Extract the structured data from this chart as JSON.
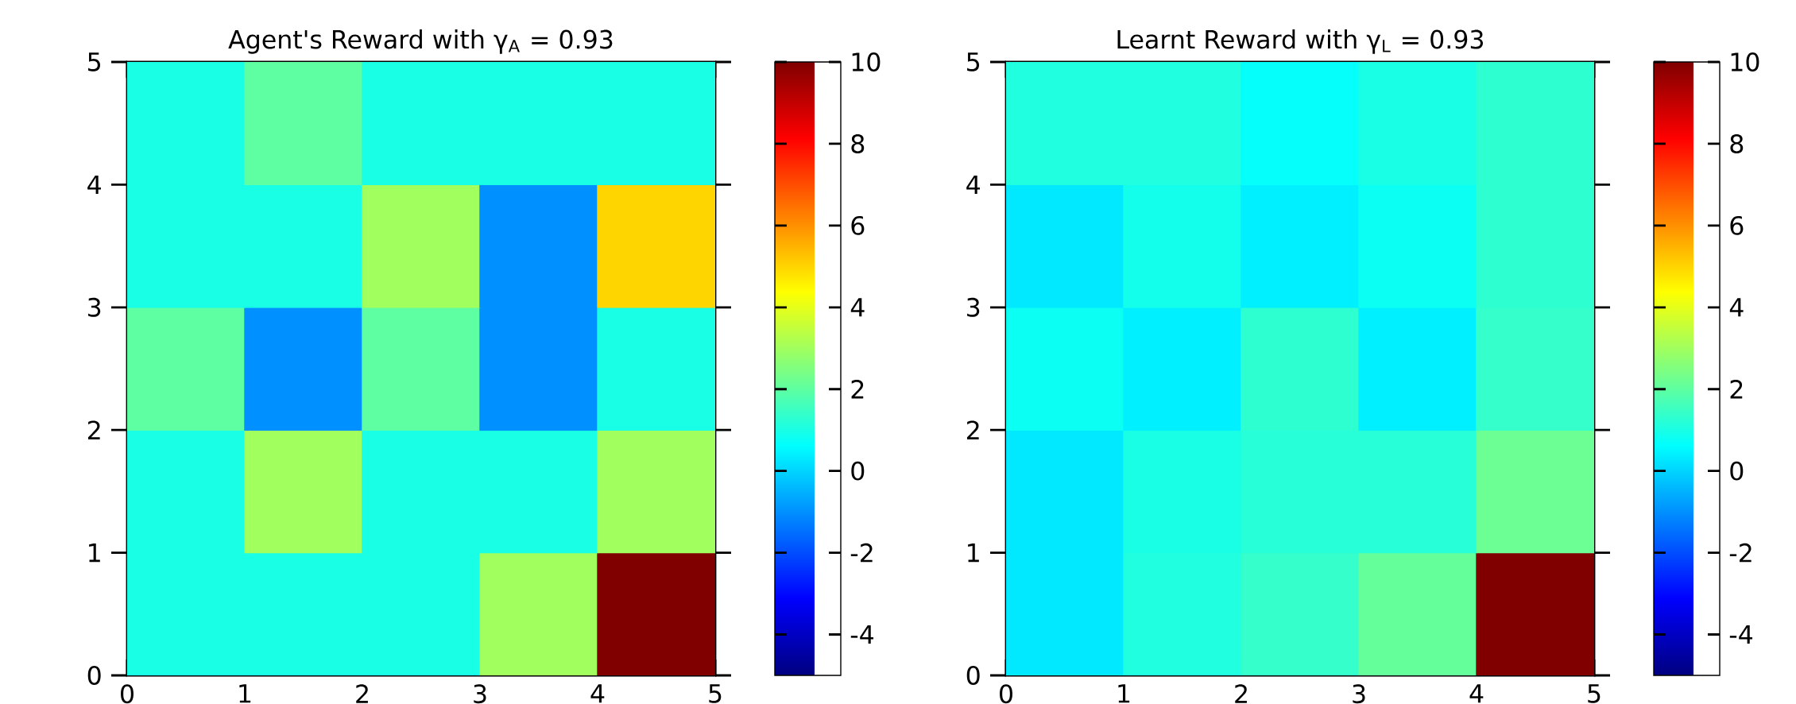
{
  "chart_data": [
    {
      "type": "heatmap",
      "title": "Agent's Reward with γ$_{A}$ = 0.93",
      "cells": [
        [
          1,
          2,
          1,
          1,
          1
        ],
        [
          1,
          1,
          3,
          -1,
          5
        ],
        [
          2,
          -1,
          2,
          -1,
          1
        ],
        [
          1,
          3,
          1,
          1,
          3
        ],
        [
          1,
          1,
          1,
          3,
          10
        ]
      ],
      "xlim": [
        0,
        5
      ],
      "ylim": [
        0,
        5
      ],
      "xticks": [
        0,
        1,
        2,
        3,
        4,
        5
      ],
      "yticks": [
        0,
        1,
        2,
        3,
        4,
        5
      ],
      "clim": [
        -5,
        10
      ],
      "cticks": [
        -4,
        -2,
        0,
        2,
        4,
        6,
        8,
        10
      ]
    },
    {
      "type": "heatmap",
      "title": "Learnt Reward with γ$_{L}$ = 0.93",
      "cells": [
        [
          1.1,
          1.1,
          0.7,
          1,
          1.3
        ],
        [
          0.3,
          0.9,
          0.4,
          0.8,
          1.3
        ],
        [
          0.8,
          0.4,
          1.3,
          0.4,
          1.4
        ],
        [
          0.3,
          1,
          1.2,
          1.2,
          2.2
        ],
        [
          0.3,
          1.1,
          1.4,
          2.1,
          10
        ]
      ],
      "xlim": [
        0,
        5
      ],
      "ylim": [
        0,
        5
      ],
      "xticks": [
        0,
        1,
        2,
        3,
        4,
        5
      ],
      "yticks": [
        0,
        1,
        2,
        3,
        4,
        5
      ],
      "clim": [
        -5,
        10
      ],
      "cticks": [
        -4,
        -2,
        0,
        2,
        4,
        6,
        8,
        10
      ]
    }
  ]
}
